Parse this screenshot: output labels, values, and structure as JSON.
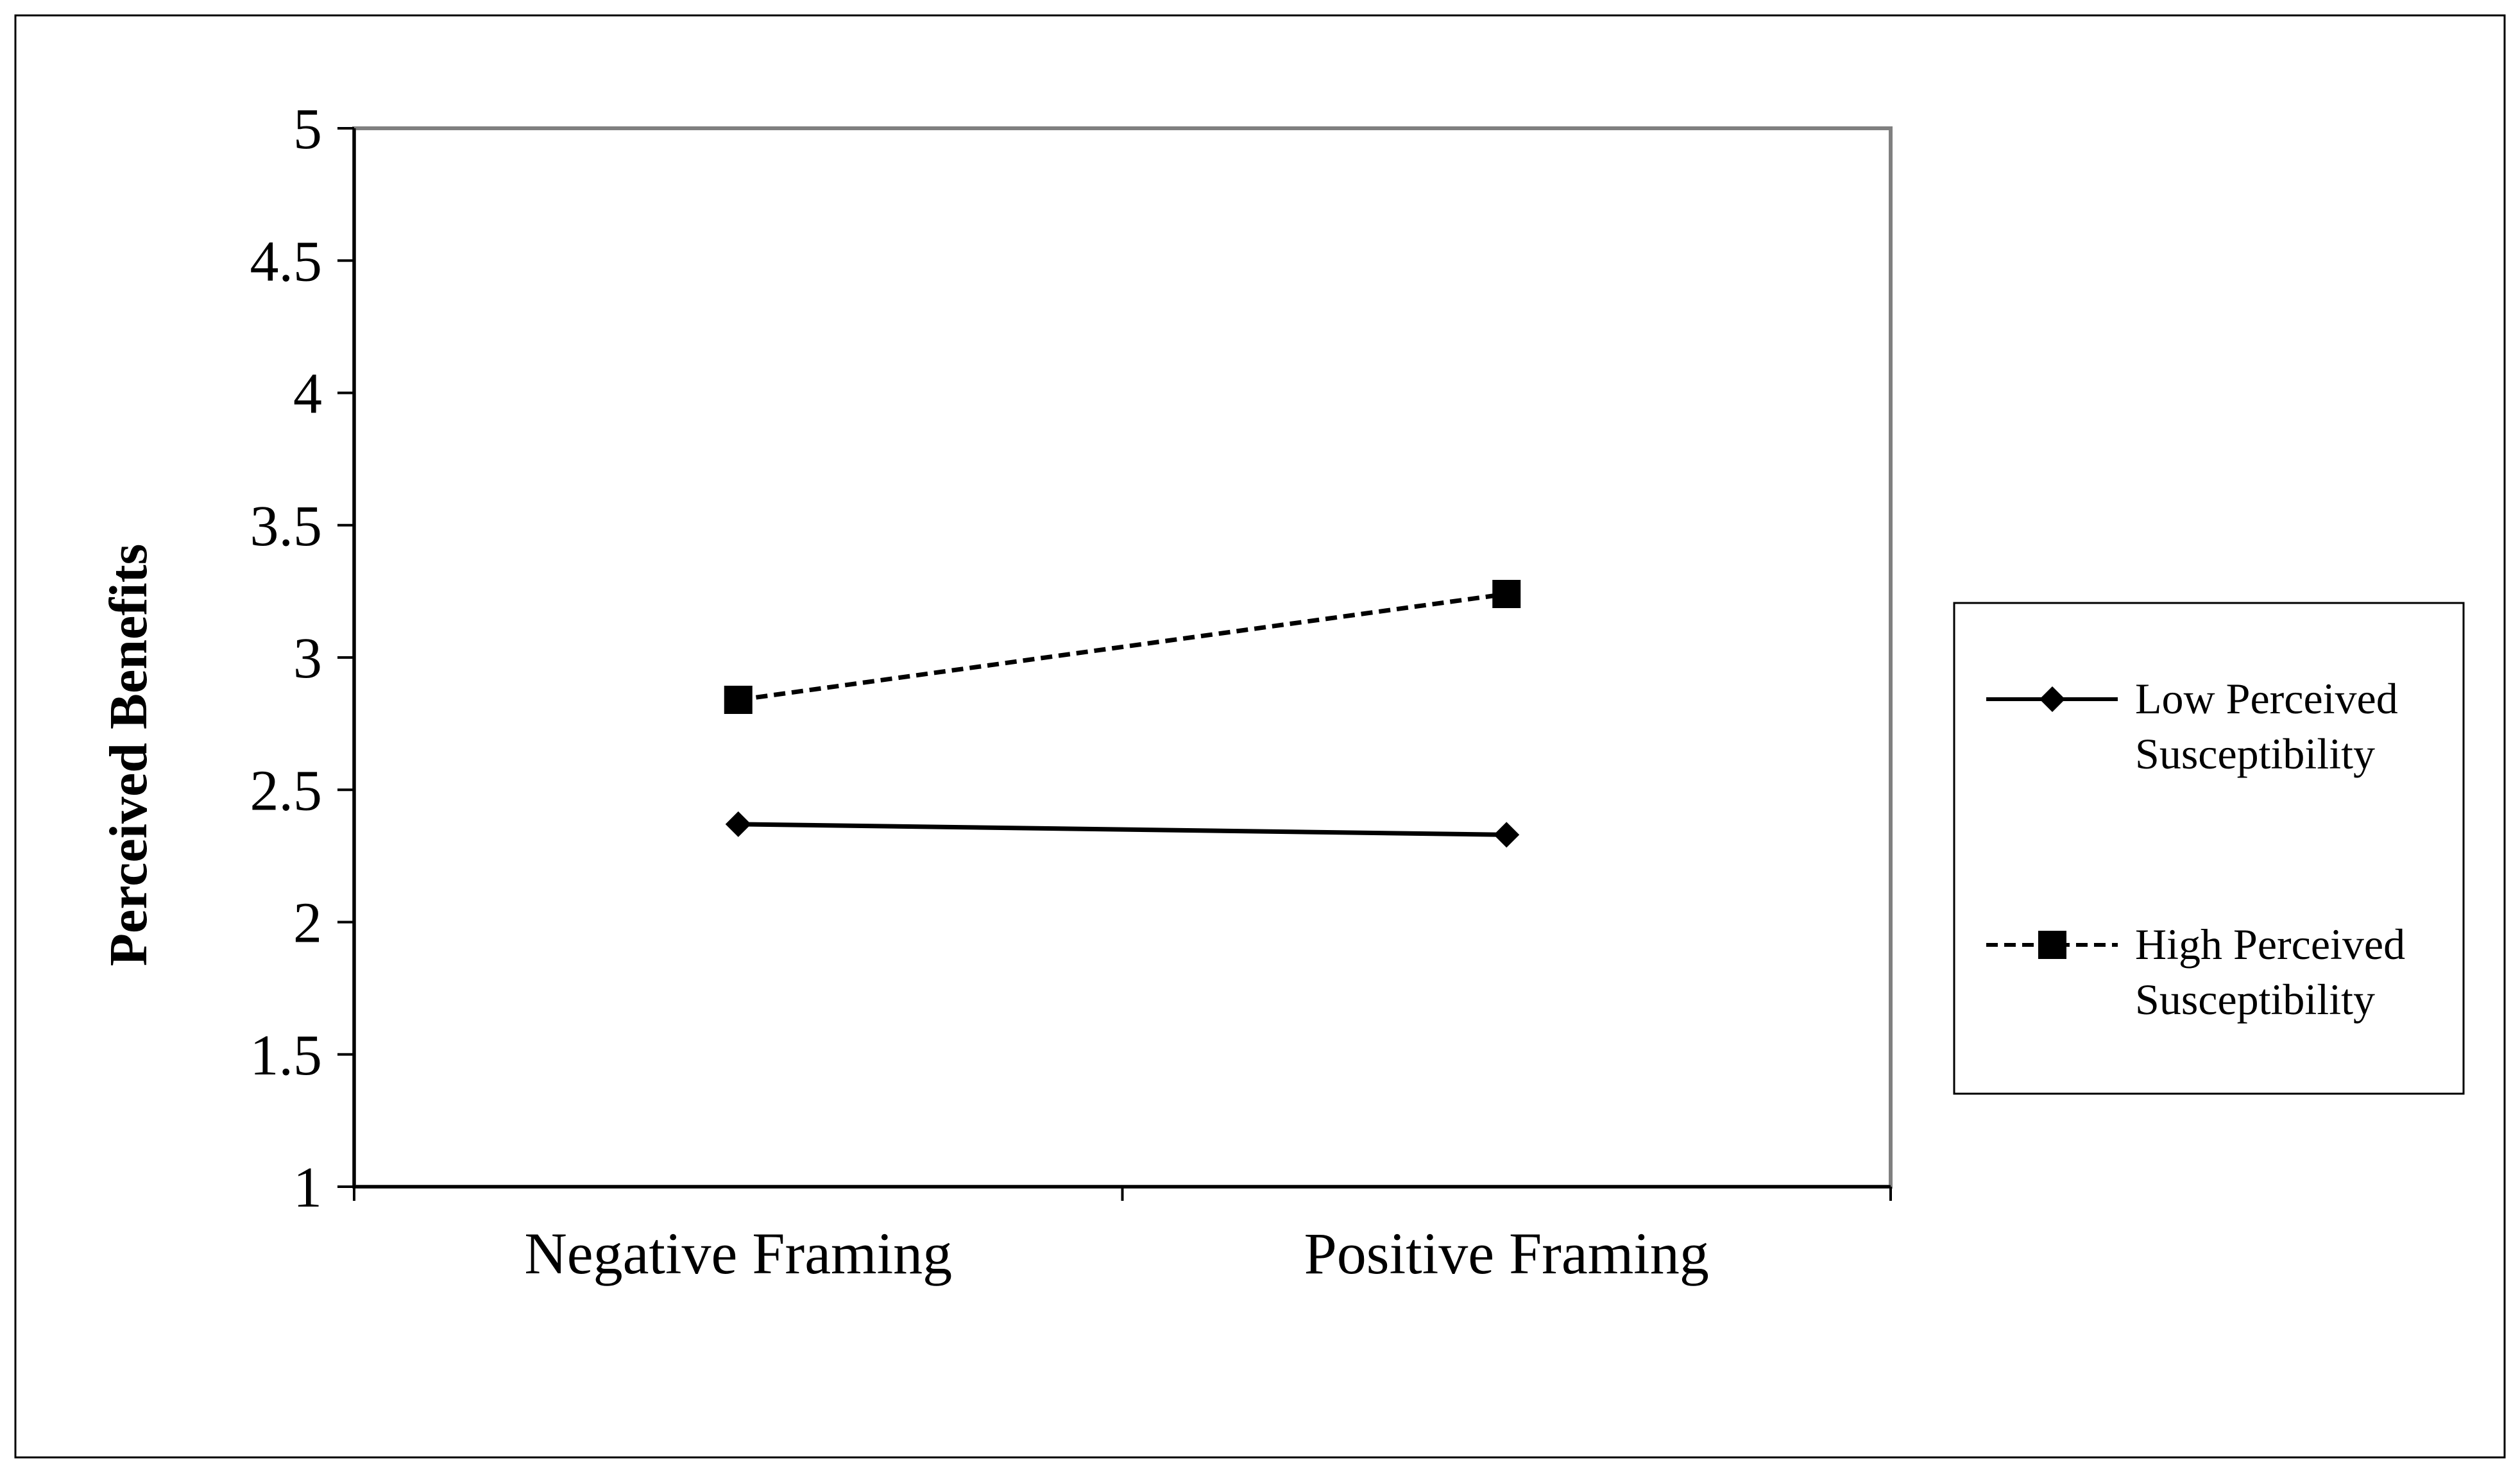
{
  "chart_data": {
    "type": "line",
    "title": "",
    "xlabel": "",
    "ylabel": "Perceived Benefits",
    "ylim": [
      1,
      5
    ],
    "yticks": [
      "1",
      "1.5",
      "2",
      "2.5",
      "3",
      "3.5",
      "4",
      "4.5",
      "5"
    ],
    "categories": [
      "Negative Framing",
      "Positive Framing"
    ],
    "series": [
      {
        "name": "Low Perceived Susceptibility",
        "name_lines": [
          "Low Perceived",
          "Susceptibility"
        ],
        "values": [
          2.37,
          2.33
        ],
        "line_style": "solid",
        "marker": "diamond",
        "color": "#000000"
      },
      {
        "name": "High Perceived Susceptibility",
        "name_lines": [
          "High Perceived",
          "Susceptibility"
        ],
        "values": [
          2.84,
          3.24
        ],
        "line_style": "dashed",
        "marker": "square",
        "color": "#000000"
      }
    ],
    "grid": false,
    "legend_position": "right"
  }
}
